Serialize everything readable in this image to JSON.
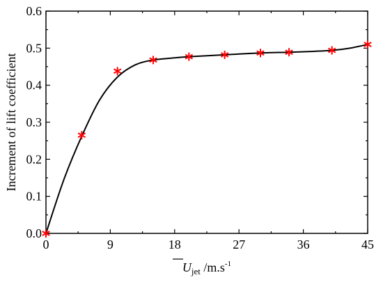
{
  "chart_data": {
    "type": "scatter",
    "title": "",
    "xlabel": {
      "main": "U",
      "sub": "jet",
      "unit": " /m.s",
      "sup": "-1"
    },
    "ylabel": "Increment of lift coefficient",
    "xlim": [
      0,
      45
    ],
    "ylim": [
      0,
      0.6
    ],
    "xticks": [
      0,
      9,
      18,
      27,
      36,
      45
    ],
    "yticks": [
      0.0,
      0.1,
      0.2,
      0.3,
      0.4,
      0.5,
      0.6
    ],
    "x_tick_labels": [
      "0",
      "9",
      "18",
      "27",
      "36",
      "45"
    ],
    "y_tick_labels": [
      "0.0",
      "0.1",
      "0.2",
      "0.3",
      "0.4",
      "0.5",
      "0.6"
    ],
    "grid": false,
    "series": [
      {
        "type": "scatter",
        "marker": "asterisk",
        "color": "#ff0000",
        "x": [
          0,
          5,
          10,
          15,
          20,
          25,
          30,
          34,
          40,
          45
        ],
        "y": [
          0.0,
          0.265,
          0.438,
          0.468,
          0.477,
          0.482,
          0.487,
          0.489,
          0.494,
          0.51
        ]
      },
      {
        "type": "line",
        "color": "#000000",
        "x": [
          0,
          2.5,
          5,
          7.5,
          10,
          12.5,
          15,
          17.5,
          20,
          25,
          30,
          34,
          37,
          40,
          42.5,
          45
        ],
        "y": [
          0.0,
          0.145,
          0.262,
          0.36,
          0.422,
          0.455,
          0.468,
          0.473,
          0.477,
          0.482,
          0.487,
          0.489,
          0.491,
          0.494,
          0.5,
          0.51
        ]
      }
    ]
  }
}
